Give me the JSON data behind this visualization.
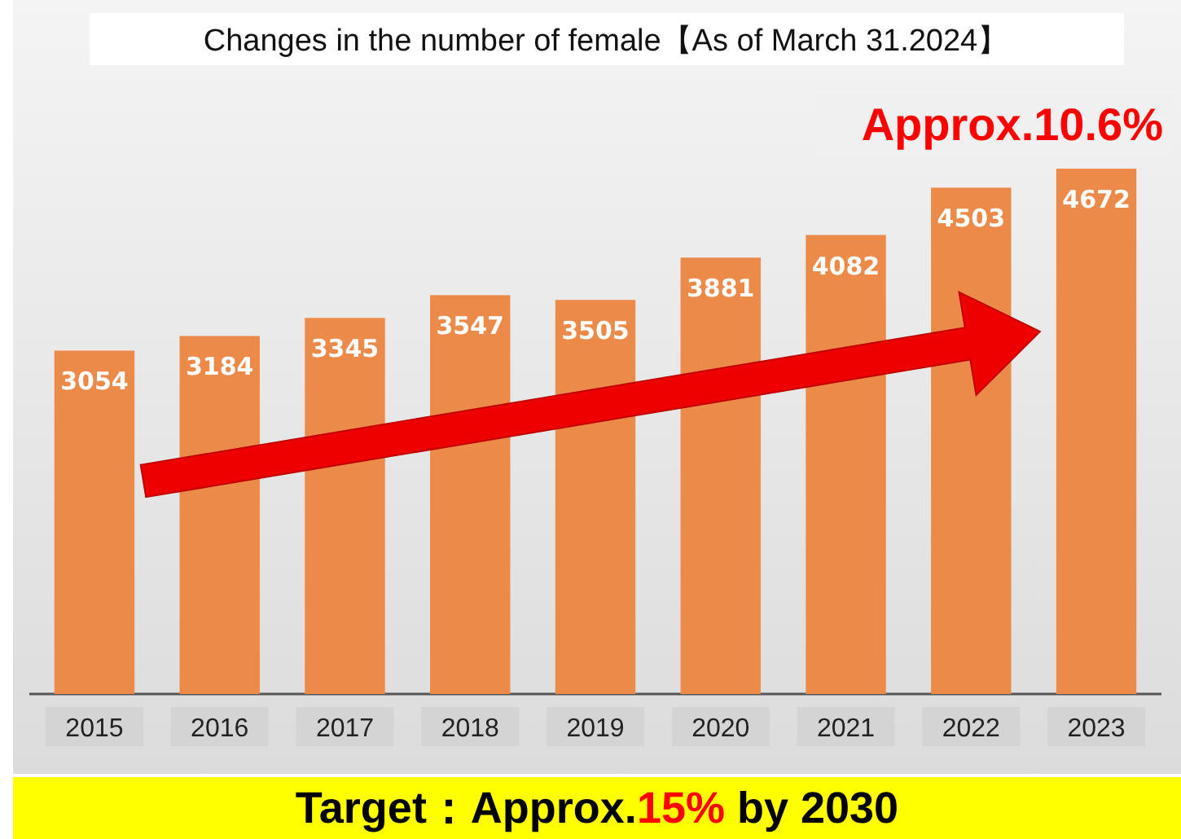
{
  "chart_data": {
    "type": "bar",
    "title": "Changes in the number of female【As of March 31.2024】",
    "categories": [
      "2015",
      "2016",
      "2017",
      "2018",
      "2019",
      "2020",
      "2021",
      "2022",
      "2023"
    ],
    "values": [
      3054,
      3184,
      3345,
      3547,
      3505,
      3881,
      4082,
      4503,
      4672
    ],
    "color": "#ec8a4a",
    "tick_labels": "x",
    "data_labels": true,
    "annotations": [
      "Approx.10.6%",
      "Target：Approx.15% by 2030"
    ]
  }
}
